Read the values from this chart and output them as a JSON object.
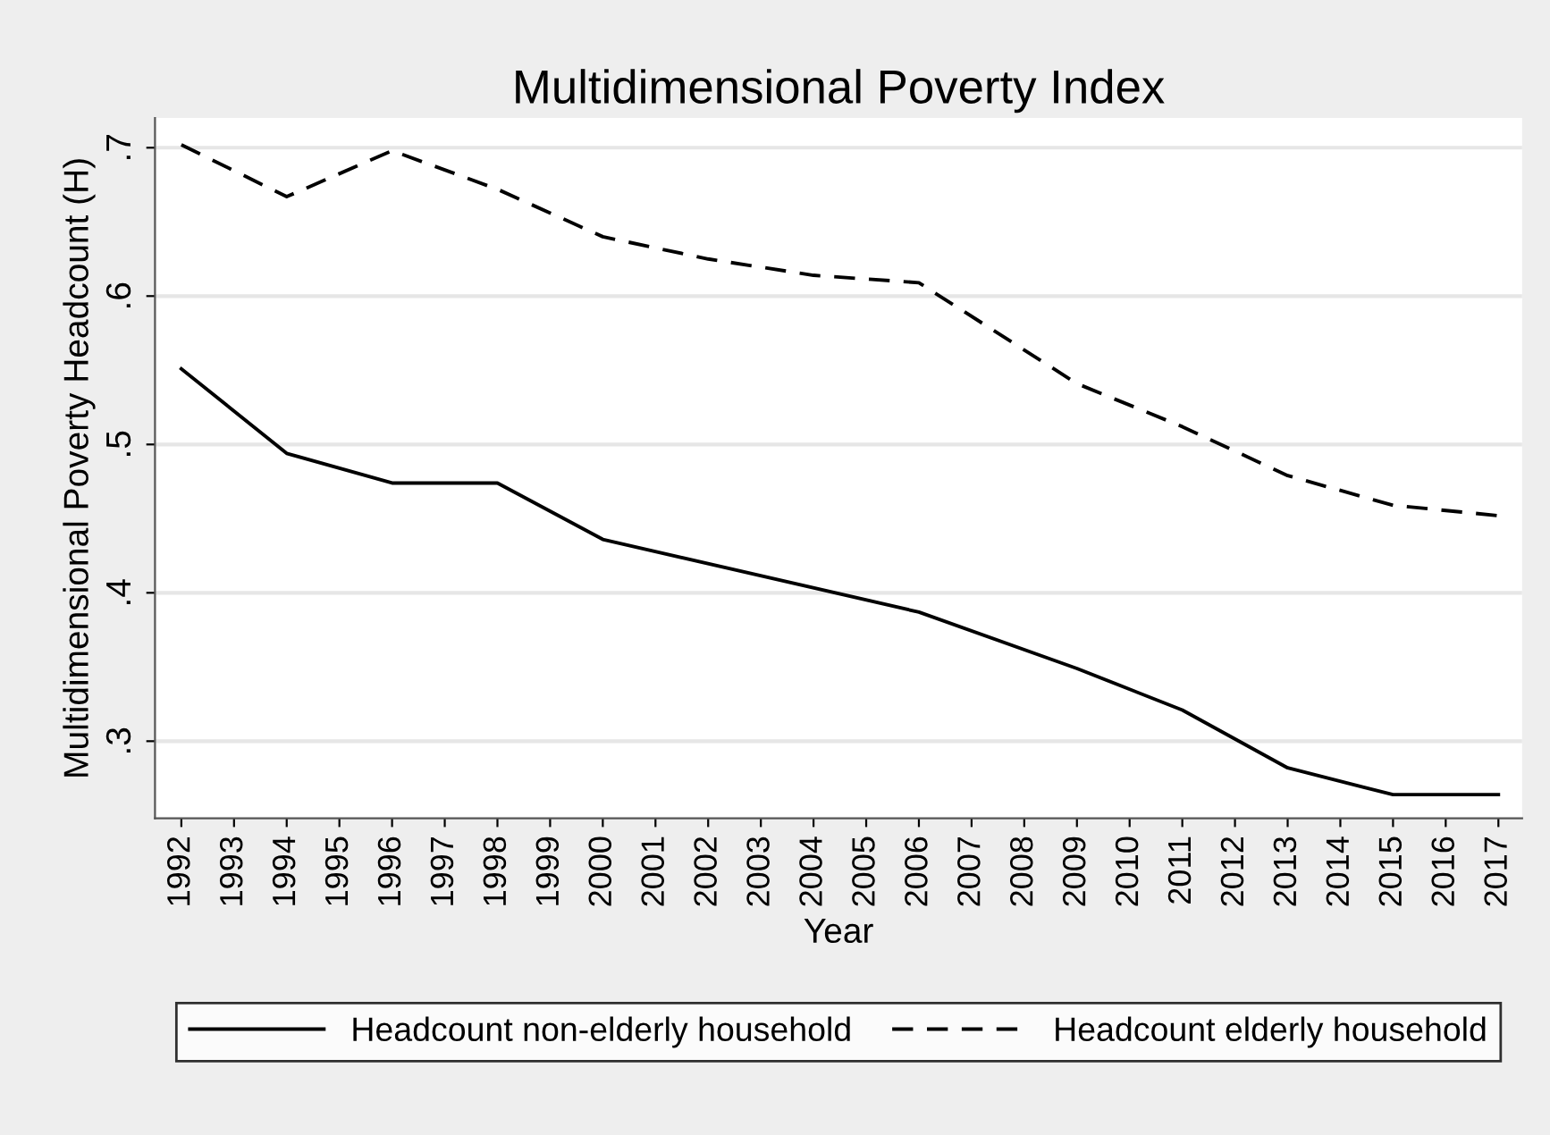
{
  "chart_data": {
    "type": "line",
    "title": "Multidimensional Poverty Index",
    "xlabel": "Year",
    "ylabel": "Multidimensional Poverty Headcount (H)",
    "series": [
      {
        "name": "Headcount non-elderly household",
        "color": "#000000",
        "line_style": "solid",
        "x": [
          1992,
          1994,
          1996,
          1998,
          2000,
          2006,
          2009,
          2011,
          2013,
          2015,
          2017
        ],
        "values": [
          0.551,
          0.494,
          0.474,
          0.474,
          0.436,
          0.387,
          0.349,
          0.321,
          0.282,
          0.264,
          0.264
        ]
      },
      {
        "name": "Headcount elderly household",
        "color": "#000000",
        "line_style": "dashed",
        "x": [
          1992,
          1994,
          1996,
          1998,
          2000,
          2002,
          2004,
          2006,
          2009,
          2011,
          2013,
          2015,
          2017
        ],
        "values": [
          0.702,
          0.667,
          0.698,
          0.672,
          0.64,
          0.625,
          0.614,
          0.609,
          0.541,
          0.512,
          0.479,
          0.459,
          0.452
        ]
      }
    ],
    "xlim": [
      1991.5,
      2017.45
    ],
    "xticks": [
      1992,
      1993,
      1994,
      1995,
      1996,
      1997,
      1998,
      1999,
      2000,
      2001,
      2002,
      2003,
      2004,
      2005,
      2006,
      2007,
      2008,
      2009,
      2010,
      2011,
      2012,
      2013,
      2014,
      2015,
      2016,
      2017
    ],
    "ylim": [
      0.248,
      0.72
    ],
    "yticks": [
      {
        "value": 0.3,
        "label": ".3"
      },
      {
        "value": 0.4,
        "label": ".4"
      },
      {
        "value": 0.5,
        "label": ".5"
      },
      {
        "value": 0.6,
        "label": ".6"
      },
      {
        "value": 0.7,
        "label": ".7"
      }
    ],
    "grid": "y",
    "legend": "bottom",
    "marker": "none"
  }
}
